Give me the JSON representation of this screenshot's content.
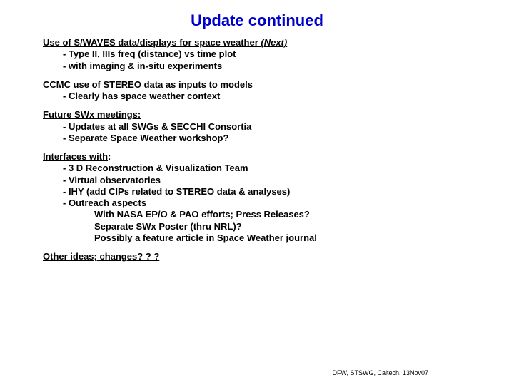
{
  "title": "Update continued",
  "sec1": {
    "heading_a": "Use of S/WAVES data/displays for space weather ",
    "heading_b": "(Next)",
    "b1": "-  Type II, IIIs freq (distance) vs time plot",
    "b2": "-  with imaging & in-situ experiments"
  },
  "sec2": {
    "heading": "CCMC use of STEREO data as inputs to models",
    "b1": "-  Clearly has space weather context"
  },
  "sec3": {
    "heading": "Future SWx meetings:",
    "b1": "-  Updates at all SWGs & SECCHI Consortia",
    "b2": "-  Separate Space Weather workshop?"
  },
  "sec4": {
    "heading": "Interfaces with",
    "heading_colon": ":",
    "b1": "-  3 D Reconstruction & Visualization Team",
    "b2": "-  Virtual observatories",
    "b3": "-  IHY (add CIPs related to STEREO data & analyses)",
    "b4": "-  Outreach aspects",
    "s1": "With NASA EP/O & PAO efforts;  Press Releases?",
    "s2": "Separate SWx Poster (thru NRL)?",
    "s3": "Possibly a feature article in Space Weather journal"
  },
  "sec5": {
    "heading": "Other ideas; changes? ? ?"
  },
  "footer": "DFW, STSWG, Caltech, 13Nov07"
}
